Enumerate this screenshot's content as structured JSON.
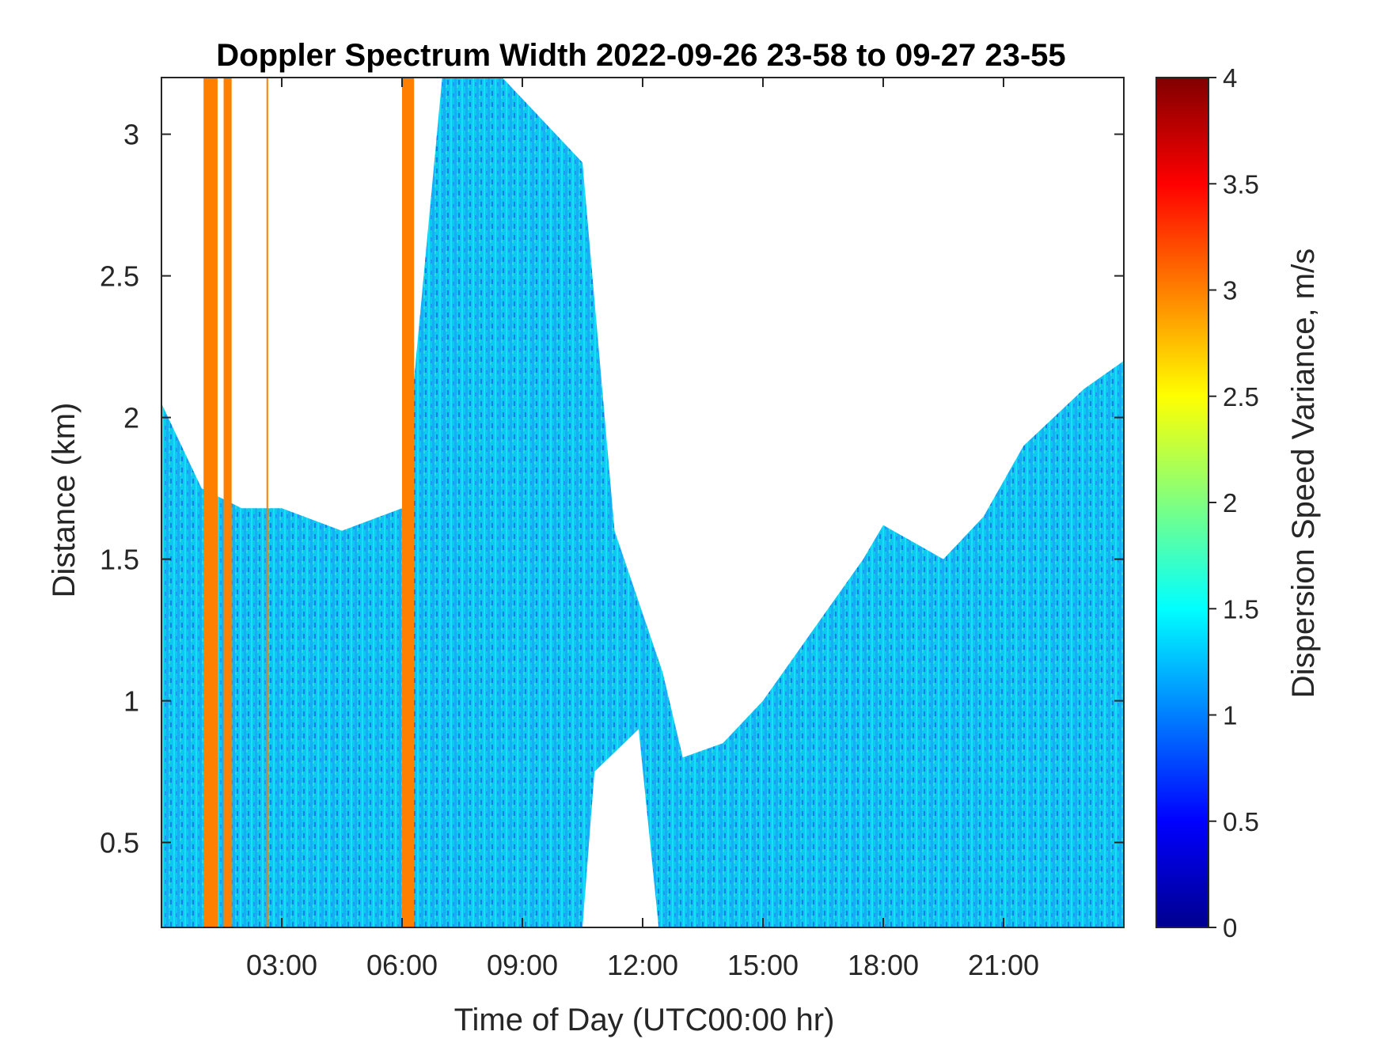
{
  "chart_data": {
    "type": "heatmap",
    "title": "Doppler Spectrum Width 2022-09-26 23-58 to 09-27 23-55",
    "xlabel": "Time of Day (UTC00:00 hr)",
    "ylabel": "Distance (km)",
    "xlim": [
      0,
      24
    ],
    "ylim": [
      0.2,
      3.2
    ],
    "x_ticks": [
      3,
      6,
      9,
      12,
      15,
      18,
      21
    ],
    "x_tick_labels": [
      "03:00",
      "06:00",
      "09:00",
      "12:00",
      "15:00",
      "18:00",
      "21:00"
    ],
    "y_ticks": [
      0.5,
      1,
      1.5,
      2,
      2.5,
      3
    ],
    "y_tick_labels": [
      "0.5",
      "1",
      "1.5",
      "2",
      "2.5",
      "3"
    ],
    "colormap": "jet",
    "colorbar": {
      "label": "Dispersion Speed Variance, m/s",
      "range": [
        0,
        4
      ],
      "ticks": [
        0,
        0.5,
        1,
        1.5,
        2,
        2.5,
        3,
        3.5,
        4
      ],
      "tick_labels": [
        "0",
        "0.5",
        "1",
        "1.5",
        "2",
        "2.5",
        "3",
        "3.5",
        "4"
      ]
    },
    "grid": false,
    "typical_value": 1.3,
    "coverage_top_km": [
      {
        "x": 0.0,
        "top": 2.05
      },
      {
        "x": 1.0,
        "top": 1.75
      },
      {
        "x": 2.0,
        "top": 1.68
      },
      {
        "x": 3.0,
        "top": 1.68
      },
      {
        "x": 4.5,
        "top": 1.6
      },
      {
        "x": 6.0,
        "top": 1.68
      },
      {
        "x": 7.0,
        "top": 3.2
      },
      {
        "x": 8.5,
        "top": 3.2
      },
      {
        "x": 10.5,
        "top": 2.9
      },
      {
        "x": 11.3,
        "top": 1.6
      },
      {
        "x": 12.5,
        "top": 1.1
      },
      {
        "x": 13.0,
        "top": 0.8
      },
      {
        "x": 14.0,
        "top": 0.85
      },
      {
        "x": 15.0,
        "top": 1.0
      },
      {
        "x": 16.0,
        "top": 1.2
      },
      {
        "x": 17.5,
        "top": 1.5
      },
      {
        "x": 18.0,
        "top": 1.62
      },
      {
        "x": 19.5,
        "top": 1.5
      },
      {
        "x": 20.5,
        "top": 1.65
      },
      {
        "x": 21.5,
        "top": 1.9
      },
      {
        "x": 23.0,
        "top": 2.1
      },
      {
        "x": 24.0,
        "top": 2.2
      }
    ],
    "coverage_gap": {
      "x_start": 10.5,
      "x_end": 12.4,
      "bottom_km": 0.2
    },
    "high_variance_columns": [
      {
        "x_start": 1.05,
        "x_end": 1.4,
        "value": 3.0
      },
      {
        "x_start": 1.55,
        "x_end": 1.75,
        "value": 3.0
      },
      {
        "x_start": 2.62,
        "x_end": 2.66,
        "value": 3.0
      },
      {
        "x_start": 6.0,
        "x_end": 6.3,
        "value": 3.0
      }
    ]
  }
}
